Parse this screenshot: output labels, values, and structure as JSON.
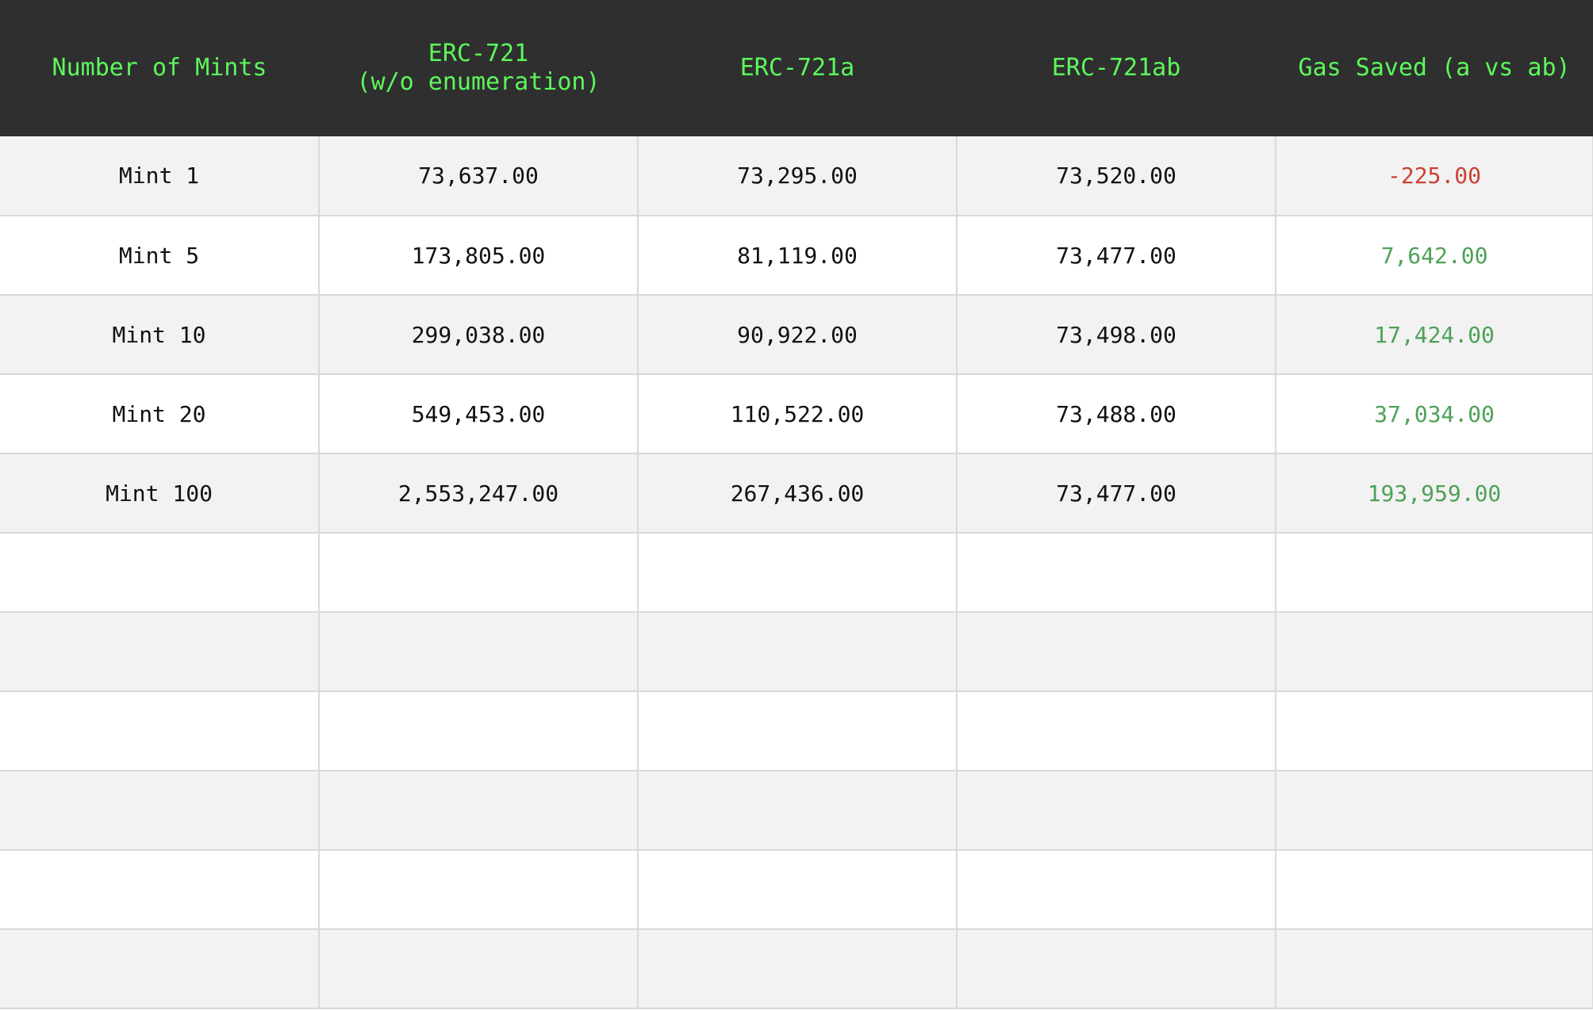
{
  "chart_data": {
    "type": "table",
    "columns": [
      "Number of Mints",
      "ERC-721\n(w/o enumeration)",
      "ERC-721a",
      "ERC-721ab",
      "Gas Saved (a vs ab)"
    ],
    "rows": [
      [
        "Mint 1",
        "73,637.00",
        "73,295.00",
        "73,520.00",
        "-225.00"
      ],
      [
        "Mint 5",
        "173,805.00",
        "81,119.00",
        "73,477.00",
        "7,642.00"
      ],
      [
        "Mint 10",
        "299,038.00",
        "90,922.00",
        "73,498.00",
        "17,424.00"
      ],
      [
        "Mint 20",
        "549,453.00",
        "110,522.00",
        "73,488.00",
        "37,034.00"
      ],
      [
        "Mint 100",
        "2,553,247.00",
        "267,436.00",
        "73,477.00",
        "193,959.00"
      ]
    ],
    "empty_rows": 6
  },
  "colors": {
    "header_background": "#2f2f2f",
    "header_text": "#5cf85c",
    "negative_value": "#cc4136",
    "positive_value": "#4ea158",
    "stripe": "#f2f2f2"
  }
}
